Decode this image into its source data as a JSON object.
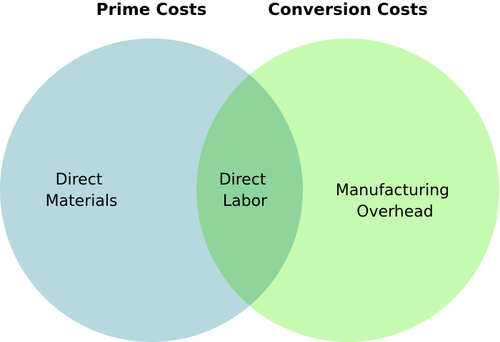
{
  "diagram": {
    "type": "venn",
    "sets": [
      {
        "title": "Prime Costs",
        "fill_color": "#b6d8de"
      },
      {
        "title": "Conversion Costs",
        "fill_color": "#c6fab0"
      }
    ],
    "overlap_color": "#8ed49c",
    "regions": {
      "left_only": {
        "line1": "Direct",
        "line2": "Materials"
      },
      "intersection": {
        "line1": "Direct",
        "line2": "Labor"
      },
      "right_only": {
        "line1": "Manufacturing",
        "line2": "Overhead"
      }
    }
  }
}
